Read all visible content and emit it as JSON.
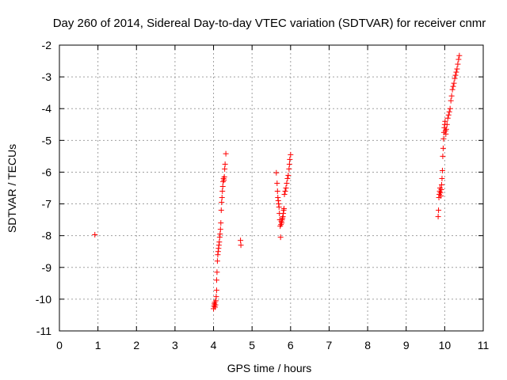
{
  "chart_data": {
    "type": "scatter",
    "title": "Day 260 of 2014, Sidereal Day-to-day VTEC variation (SDTVAR) for receiver cnmr",
    "xlabel": "GPS time / hours",
    "ylabel": "SDTVAR / TECUs",
    "xlim": [
      0,
      11
    ],
    "ylim": [
      -11,
      -2
    ],
    "xticks": [
      0,
      1,
      2,
      3,
      4,
      5,
      6,
      7,
      8,
      9,
      10,
      11
    ],
    "yticks": [
      -11,
      -10,
      -9,
      -8,
      -7,
      -6,
      -5,
      -4,
      -3,
      -2
    ],
    "grid": true,
    "marker": "+",
    "series_color": "#ff0000",
    "series": [
      {
        "name": "SDTVAR",
        "points": [
          [
            0.92,
            -7.97
          ],
          [
            4.0,
            -10.3
          ],
          [
            4.01,
            -10.22
          ],
          [
            4.02,
            -10.15
          ],
          [
            4.03,
            -10.1
          ],
          [
            4.04,
            -10.25
          ],
          [
            4.05,
            -10.18
          ],
          [
            4.06,
            -10.05
          ],
          [
            4.07,
            -9.92
          ],
          [
            4.08,
            -9.72
          ],
          [
            4.08,
            -9.4
          ],
          [
            4.09,
            -9.15
          ],
          [
            4.1,
            -8.8
          ],
          [
            4.11,
            -8.6
          ],
          [
            4.12,
            -8.5
          ],
          [
            4.13,
            -8.4
          ],
          [
            4.14,
            -8.3
          ],
          [
            4.15,
            -8.2
          ],
          [
            4.16,
            -8.05
          ],
          [
            4.17,
            -7.95
          ],
          [
            4.18,
            -7.8
          ],
          [
            4.19,
            -7.6
          ],
          [
            4.2,
            -7.2
          ],
          [
            4.21,
            -6.95
          ],
          [
            4.22,
            -6.8
          ],
          [
            4.23,
            -6.6
          ],
          [
            4.24,
            -6.45
          ],
          [
            4.25,
            -6.3
          ],
          [
            4.26,
            -6.2
          ],
          [
            4.27,
            -6.25
          ],
          [
            4.28,
            -6.15
          ],
          [
            4.29,
            -5.9
          ],
          [
            4.3,
            -5.75
          ],
          [
            4.32,
            -5.42
          ],
          [
            4.7,
            -8.15
          ],
          [
            4.71,
            -8.3
          ],
          [
            5.63,
            -6.02
          ],
          [
            5.65,
            -6.35
          ],
          [
            5.66,
            -6.6
          ],
          [
            5.67,
            -6.8
          ],
          [
            5.68,
            -6.9
          ],
          [
            5.69,
            -7.0
          ],
          [
            5.7,
            -7.1
          ],
          [
            5.71,
            -7.3
          ],
          [
            5.72,
            -7.5
          ],
          [
            5.73,
            -7.7
          ],
          [
            5.74,
            -8.05
          ],
          [
            5.75,
            -7.65
          ],
          [
            5.76,
            -7.55
          ],
          [
            5.77,
            -7.6
          ],
          [
            5.78,
            -7.5
          ],
          [
            5.79,
            -7.45
          ],
          [
            5.8,
            -7.4
          ],
          [
            5.81,
            -7.3
          ],
          [
            5.82,
            -7.2
          ],
          [
            5.83,
            -7.15
          ],
          [
            5.84,
            -6.7
          ],
          [
            5.86,
            -6.6
          ],
          [
            5.88,
            -6.5
          ],
          [
            5.9,
            -6.35
          ],
          [
            5.92,
            -6.2
          ],
          [
            5.94,
            -6.1
          ],
          [
            5.96,
            -5.9
          ],
          [
            5.97,
            -5.75
          ],
          [
            5.98,
            -5.6
          ],
          [
            6.0,
            -5.45
          ],
          [
            9.83,
            -7.4
          ],
          [
            9.84,
            -7.2
          ],
          [
            9.85,
            -6.8
          ],
          [
            9.86,
            -6.7
          ],
          [
            9.87,
            -6.6
          ],
          [
            9.88,
            -6.5
          ],
          [
            9.89,
            -6.65
          ],
          [
            9.9,
            -6.75
          ],
          [
            9.91,
            -6.55
          ],
          [
            9.92,
            -6.4
          ],
          [
            9.93,
            -6.2
          ],
          [
            9.94,
            -5.95
          ],
          [
            9.95,
            -5.5
          ],
          [
            9.96,
            -5.25
          ],
          [
            9.97,
            -4.95
          ],
          [
            9.98,
            -4.75
          ],
          [
            9.99,
            -4.6
          ],
          [
            10.0,
            -4.5
          ],
          [
            10.01,
            -4.4
          ],
          [
            10.02,
            -4.7
          ],
          [
            10.03,
            -4.8
          ],
          [
            10.04,
            -4.65
          ],
          [
            10.06,
            -4.5
          ],
          [
            10.08,
            -4.3
          ],
          [
            10.1,
            -4.2
          ],
          [
            10.12,
            -4.1
          ],
          [
            10.14,
            -4.0
          ],
          [
            10.16,
            -3.75
          ],
          [
            10.18,
            -3.6
          ],
          [
            10.2,
            -3.4
          ],
          [
            10.22,
            -3.3
          ],
          [
            10.24,
            -3.2
          ],
          [
            10.26,
            -3.05
          ],
          [
            10.28,
            -2.95
          ],
          [
            10.3,
            -2.85
          ],
          [
            10.32,
            -2.75
          ],
          [
            10.34,
            -2.6
          ],
          [
            10.36,
            -2.45
          ],
          [
            10.38,
            -2.33
          ]
        ]
      }
    ]
  }
}
